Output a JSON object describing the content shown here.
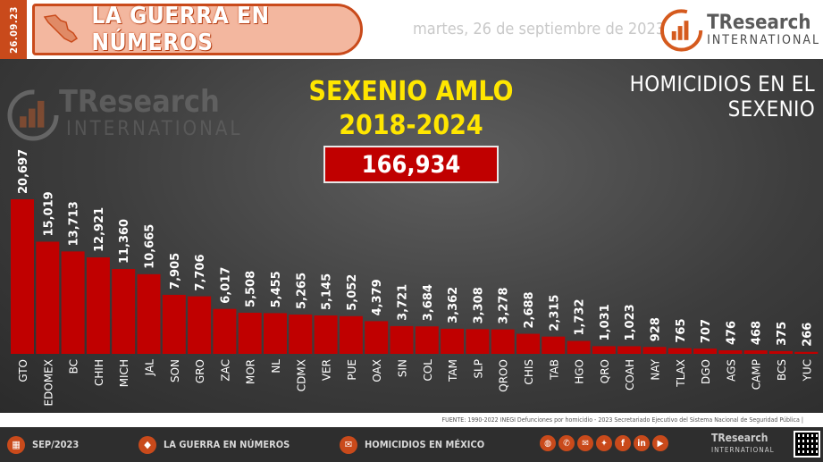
{
  "header": {
    "side_date": "26.09.23",
    "banner_title": "LA GUERRA EN NÚMEROS",
    "date_text": "martes, 26 de septiembre de 2023",
    "logo_primary": "TResearch",
    "logo_secondary": "INTERNATIONAL"
  },
  "watermark": {
    "primary": "TResearch",
    "secondary": "INTERNATIONAL"
  },
  "total_label": "166,934",
  "source_note": "FUENTE: 1990-2022 INEGI Defunciones por homicidio - 2023 Secretariado Ejecutivo del Sistema Nacional de Seguridad Pública |",
  "footer": {
    "item1": "SEP/2023",
    "item2": "LA GUERRA EN NÚMEROS",
    "item3": "HOMICIDIOS EN MÉXICO",
    "logo_primary": "TResearch",
    "logo_secondary": "INTERNATIONAL"
  },
  "colors": {
    "bar": "#c00000",
    "accent": "#c94a1b",
    "title": "#ffe600"
  },
  "chart_data": {
    "type": "bar",
    "title": "SEXENIO AMLO 2018-2024",
    "subtitle": "HOMICIDIOS EN EL SEXENIO",
    "categories": [
      "GTO",
      "EDOMEX",
      "BC",
      "CHIH",
      "MICH",
      "JAL",
      "SON",
      "GRO",
      "ZAC",
      "MOR",
      "NL",
      "CDMX",
      "VER",
      "PUE",
      "OAX",
      "SIN",
      "COL",
      "TAM",
      "SLP",
      "QROO",
      "CHIS",
      "TAB",
      "HGO",
      "QRO",
      "COAH",
      "NAY",
      "TLAX",
      "DGO",
      "AGS",
      "CAMP",
      "BCS",
      "YUC"
    ],
    "value_labels": [
      "20,697",
      "15,019",
      "13,713",
      "12,921",
      "11,360",
      "10,665",
      "7,905",
      "7,706",
      "6,017",
      "5,508",
      "5,455",
      "5,265",
      "5,145",
      "5,052",
      "4,379",
      "3,721",
      "3,684",
      "3,362",
      "3,308",
      "3,278",
      "2,688",
      "2,315",
      "1,732",
      "1,031",
      "1,023",
      "928",
      "765",
      "707",
      "476",
      "468",
      "375",
      "266"
    ],
    "values": [
      20697,
      15019,
      13713,
      12921,
      11360,
      10665,
      7905,
      7706,
      6017,
      5508,
      5455,
      5265,
      5145,
      5052,
      4379,
      3721,
      3684,
      3362,
      3308,
      3278,
      2688,
      2315,
      1732,
      1031,
      1023,
      928,
      765,
      707,
      476,
      468,
      375,
      266
    ],
    "ylim": [
      0,
      20697
    ],
    "grid": false,
    "legend": "none"
  }
}
